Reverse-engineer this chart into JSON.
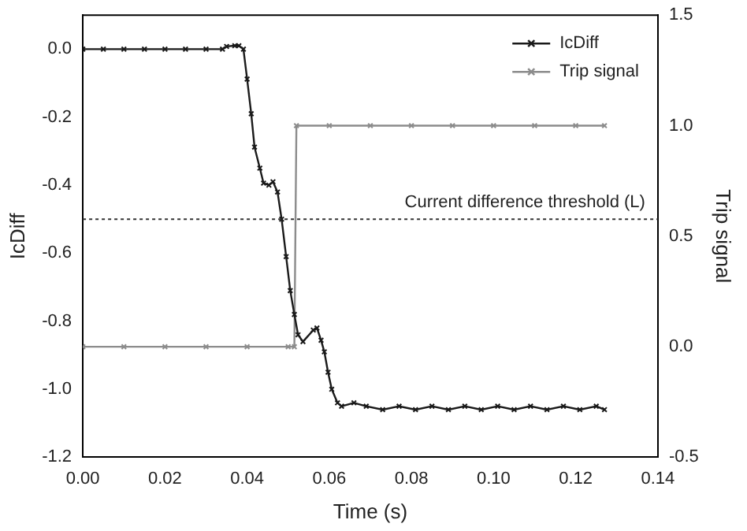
{
  "chart_data": {
    "type": "line",
    "xlabel": "Time (s)",
    "ylabel": "IcDiff",
    "y2label": "Trip signal",
    "xlim": [
      0,
      0.14
    ],
    "xticks": [
      {
        "value": 0,
        "label": "0.00"
      },
      {
        "value": 0.02,
        "label": "0.02"
      },
      {
        "value": 0.04,
        "label": "0.04"
      },
      {
        "value": 0.06,
        "label": "0.06"
      },
      {
        "value": 0.08,
        "label": "0.08"
      },
      {
        "value": 0.1,
        "label": "0.10"
      },
      {
        "value": 0.12,
        "label": "0.12"
      },
      {
        "value": 0.14,
        "label": "0.14"
      }
    ],
    "ylim": [
      -1.2,
      0.1
    ],
    "yticks": [
      {
        "value": -1.2,
        "label": "-1.2"
      },
      {
        "value": -1,
        "label": "-1.0"
      },
      {
        "value": -0.8,
        "label": "-0.8"
      },
      {
        "value": -0.6,
        "label": "-0.6"
      },
      {
        "value": -0.4,
        "label": "-0.4"
      },
      {
        "value": -0.2,
        "label": "-0.2"
      },
      {
        "value": 0,
        "label": "0.0"
      }
    ],
    "y2lim": [
      -0.5,
      1.5
    ],
    "y2ticks": [
      {
        "value": -0.5,
        "label": "-0.5"
      },
      {
        "value": 0,
        "label": "0.0"
      },
      {
        "value": 0.5,
        "label": "0.5"
      },
      {
        "value": 1,
        "label": "1.0"
      },
      {
        "value": 1.5,
        "label": "1.5"
      }
    ],
    "grid": false,
    "legend": "top right",
    "marker": "cross",
    "line_style": "solid",
    "series": [
      {
        "name": "IcDiff",
        "color": "#1a1a1a",
        "x": [
          0,
          0.005,
          0.01,
          0.015,
          0.02,
          0.025,
          0.03,
          0.034,
          0.035,
          0.037,
          0.038,
          0.0391,
          0.04,
          0.041,
          0.0418,
          0.0431,
          0.044,
          0.0453,
          0.0463,
          0.0474,
          0.0484,
          0.0495,
          0.0505,
          0.0515,
          0.0524,
          0.0536,
          0.0561,
          0.057,
          0.058,
          0.0588,
          0.0597,
          0.0606,
          0.062,
          0.063,
          0.066,
          0.069,
          0.073,
          0.077,
          0.081,
          0.085,
          0.089,
          0.093,
          0.097,
          0.101,
          0.105,
          0.109,
          0.113,
          0.117,
          0.121,
          0.125,
          0.127
        ],
        "values": [
          0,
          0,
          0,
          0,
          0,
          0,
          0,
          0,
          0.008,
          0.01,
          0.01,
          0,
          -0.088,
          -0.19,
          -0.288,
          -0.35,
          -0.394,
          -0.4,
          -0.39,
          -0.42,
          -0.5,
          -0.61,
          -0.71,
          -0.78,
          -0.84,
          -0.86,
          -0.826,
          -0.82,
          -0.856,
          -0.89,
          -0.95,
          -1,
          -1.04,
          -1.05,
          -1.04,
          -1.05,
          -1.06,
          -1.05,
          -1.06,
          -1.05,
          -1.06,
          -1.05,
          -1.06,
          -1.05,
          -1.06,
          -1.05,
          -1.06,
          -1.05,
          -1.06,
          -1.05,
          -1.06
        ]
      },
      {
        "name": "Trip signal",
        "color": "#8c8c8c",
        "axis": "y2",
        "x": [
          0,
          0.01,
          0.02,
          0.03,
          0.04,
          0.05,
          0.0515,
          0.052,
          0.06,
          0.07,
          0.08,
          0.09,
          0.1,
          0.11,
          0.12,
          0.127
        ],
        "values": [
          0,
          0,
          0,
          0,
          0,
          0,
          0,
          1,
          1,
          1,
          1,
          1,
          1,
          1,
          1,
          1
        ]
      }
    ],
    "ref_lines": [
      {
        "axis": "y",
        "value": -0.5,
        "label": "Current difference threshold (L)",
        "color": "#333333",
        "line_style": "dotted"
      }
    ]
  }
}
